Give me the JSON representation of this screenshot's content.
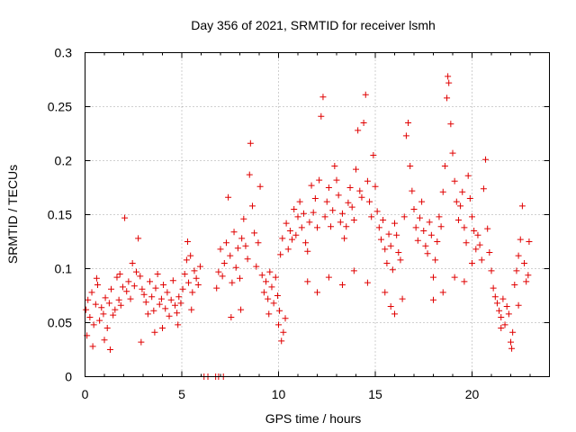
{
  "chart_data": {
    "type": "scatter",
    "title": "Day 356 of 2021, SRMTID for receiver lsmh",
    "xlabel": "GPS time / hours",
    "ylabel": "SRMTID / TECUs",
    "xlim": [
      0,
      24
    ],
    "ylim": [
      0,
      0.3
    ],
    "xticks": [
      0,
      5,
      10,
      15,
      20
    ],
    "xtick_labels": [
      "0",
      "5",
      "10",
      "15",
      "20"
    ],
    "yticks": [
      0,
      0.05,
      0.1,
      0.15,
      0.2,
      0.25,
      0.3
    ],
    "ytick_labels": [
      "0",
      "0.05",
      "0.1",
      "0.15",
      "0.2",
      "0.25",
      "0.3"
    ],
    "grid": true,
    "marker": "+",
    "color": "#e00000",
    "series": [
      {
        "name": "SRMTID",
        "points": [
          [
            0.05,
            0.062
          ],
          [
            0.15,
            0.071
          ],
          [
            0.25,
            0.055
          ],
          [
            0.35,
            0.078
          ],
          [
            0.45,
            0.048
          ],
          [
            0.55,
            0.067
          ],
          [
            0.65,
            0.085
          ],
          [
            0.75,
            0.052
          ],
          [
            0.85,
            0.064
          ],
          [
            0.95,
            0.058
          ],
          [
            1.05,
            0.073
          ],
          [
            1.15,
            0.045
          ],
          [
            1.25,
            0.068
          ],
          [
            1.35,
            0.081
          ],
          [
            1.45,
            0.057
          ],
          [
            1.55,
            0.062
          ],
          [
            1.65,
            0.092
          ],
          [
            1.75,
            0.071
          ],
          [
            1.85,
            0.066
          ],
          [
            1.95,
            0.083
          ],
          [
            0.1,
            0.038
          ],
          [
            0.4,
            0.028
          ],
          [
            0.6,
            0.091
          ],
          [
            1.0,
            0.034
          ],
          [
            1.3,
            0.025
          ],
          [
            1.8,
            0.095
          ],
          [
            2.05,
            0.147
          ],
          [
            2.15,
            0.079
          ],
          [
            2.25,
            0.088
          ],
          [
            2.35,
            0.072
          ],
          [
            2.45,
            0.105
          ],
          [
            2.55,
            0.084
          ],
          [
            2.65,
            0.097
          ],
          [
            2.75,
            0.128
          ],
          [
            2.85,
            0.093
          ],
          [
            2.95,
            0.081
          ],
          [
            3.05,
            0.076
          ],
          [
            3.15,
            0.069
          ],
          [
            3.25,
            0.058
          ],
          [
            3.35,
            0.088
          ],
          [
            3.45,
            0.074
          ],
          [
            3.55,
            0.061
          ],
          [
            3.65,
            0.082
          ],
          [
            3.75,
            0.095
          ],
          [
            3.85,
            0.067
          ],
          [
            3.95,
            0.072
          ],
          [
            4.05,
            0.085
          ],
          [
            4.15,
            0.063
          ],
          [
            4.25,
            0.078
          ],
          [
            4.35,
            0.056
          ],
          [
            4.45,
            0.071
          ],
          [
            4.55,
            0.089
          ],
          [
            4.65,
            0.066
          ],
          [
            4.75,
            0.059
          ],
          [
            4.85,
            0.074
          ],
          [
            4.95,
            0.068
          ],
          [
            5.05,
            0.081
          ],
          [
            5.15,
            0.095
          ],
          [
            5.25,
            0.108
          ],
          [
            5.35,
            0.087
          ],
          [
            5.45,
            0.112
          ],
          [
            5.55,
            0.078
          ],
          [
            5.65,
            0.098
          ],
          [
            5.75,
            0.091
          ],
          [
            5.85,
            0.085
          ],
          [
            5.95,
            0.102
          ],
          [
            2.9,
            0.032
          ],
          [
            3.6,
            0.041
          ],
          [
            4.0,
            0.045
          ],
          [
            4.8,
            0.048
          ],
          [
            5.3,
            0.125
          ],
          [
            5.5,
            0.062
          ],
          [
            6.15,
            0.0
          ],
          [
            6.35,
            0.0
          ],
          [
            6.75,
            0.0
          ],
          [
            6.9,
            0.0
          ],
          [
            7.15,
            0.0
          ],
          [
            6.8,
            0.082
          ],
          [
            6.9,
            0.097
          ],
          [
            7.0,
            0.118
          ],
          [
            7.1,
            0.093
          ],
          [
            7.2,
            0.105
          ],
          [
            7.3,
            0.124
          ],
          [
            7.4,
            0.166
          ],
          [
            7.5,
            0.112
          ],
          [
            7.6,
            0.087
          ],
          [
            7.7,
            0.134
          ],
          [
            7.8,
            0.101
          ],
          [
            7.9,
            0.119
          ],
          [
            8.0,
            0.091
          ],
          [
            8.1,
            0.128
          ],
          [
            8.2,
            0.146
          ],
          [
            8.3,
            0.121
          ],
          [
            8.4,
            0.109
          ],
          [
            8.5,
            0.187
          ],
          [
            8.55,
            0.216
          ],
          [
            8.65,
            0.158
          ],
          [
            8.75,
            0.133
          ],
          [
            8.85,
            0.102
          ],
          [
            8.95,
            0.124
          ],
          [
            9.05,
            0.176
          ],
          [
            9.15,
            0.094
          ],
          [
            9.25,
            0.078
          ],
          [
            9.35,
            0.088
          ],
          [
            9.45,
            0.072
          ],
          [
            9.55,
            0.097
          ],
          [
            9.65,
            0.083
          ],
          [
            9.75,
            0.068
          ],
          [
            9.85,
            0.092
          ],
          [
            9.95,
            0.075
          ],
          [
            10.05,
            0.061
          ],
          [
            10.15,
            0.033
          ],
          [
            10.25,
            0.041
          ],
          [
            10.35,
            0.054
          ],
          [
            7.55,
            0.055
          ],
          [
            8.05,
            0.062
          ],
          [
            9.5,
            0.058
          ],
          [
            10.0,
            0.048
          ],
          [
            10.1,
            0.113
          ],
          [
            10.2,
            0.128
          ],
          [
            10.4,
            0.142
          ],
          [
            10.5,
            0.118
          ],
          [
            10.6,
            0.135
          ],
          [
            10.7,
            0.127
          ],
          [
            10.8,
            0.155
          ],
          [
            10.9,
            0.131
          ],
          [
            11.0,
            0.148
          ],
          [
            11.1,
            0.162
          ],
          [
            11.2,
            0.138
          ],
          [
            11.3,
            0.151
          ],
          [
            11.4,
            0.124
          ],
          [
            11.5,
            0.116
          ],
          [
            11.6,
            0.143
          ],
          [
            11.7,
            0.177
          ],
          [
            11.8,
            0.152
          ],
          [
            11.9,
            0.165
          ],
          [
            12.0,
            0.138
          ],
          [
            12.1,
            0.182
          ],
          [
            12.2,
            0.241
          ],
          [
            12.3,
            0.259
          ],
          [
            12.4,
            0.148
          ],
          [
            12.5,
            0.162
          ],
          [
            12.6,
            0.175
          ],
          [
            12.7,
            0.139
          ],
          [
            12.8,
            0.154
          ],
          [
            12.9,
            0.195
          ],
          [
            13.0,
            0.182
          ],
          [
            13.1,
            0.168
          ],
          [
            13.2,
            0.143
          ],
          [
            13.3,
            0.151
          ],
          [
            13.4,
            0.128
          ],
          [
            13.5,
            0.139
          ],
          [
            13.6,
            0.161
          ],
          [
            13.7,
            0.175
          ],
          [
            13.8,
            0.157
          ],
          [
            13.9,
            0.145
          ],
          [
            14.0,
            0.192
          ],
          [
            14.1,
            0.228
          ],
          [
            14.2,
            0.172
          ],
          [
            14.3,
            0.166
          ],
          [
            14.4,
            0.235
          ],
          [
            14.5,
            0.261
          ],
          [
            14.6,
            0.181
          ],
          [
            14.7,
            0.162
          ],
          [
            14.8,
            0.148
          ],
          [
            14.9,
            0.205
          ],
          [
            15.0,
            0.176
          ],
          [
            15.1,
            0.153
          ],
          [
            15.2,
            0.138
          ],
          [
            15.3,
            0.127
          ],
          [
            15.4,
            0.145
          ],
          [
            15.5,
            0.118
          ],
          [
            15.6,
            0.105
          ],
          [
            15.7,
            0.132
          ],
          [
            15.8,
            0.121
          ],
          [
            15.9,
            0.099
          ],
          [
            16.0,
            0.142
          ],
          [
            16.1,
            0.131
          ],
          [
            16.2,
            0.115
          ],
          [
            16.3,
            0.108
          ],
          [
            11.5,
            0.088
          ],
          [
            12.0,
            0.078
          ],
          [
            12.6,
            0.092
          ],
          [
            13.3,
            0.085
          ],
          [
            13.9,
            0.098
          ],
          [
            14.6,
            0.087
          ],
          [
            15.5,
            0.078
          ],
          [
            15.8,
            0.065
          ],
          [
            16.0,
            0.058
          ],
          [
            16.4,
            0.072
          ],
          [
            16.5,
            0.148
          ],
          [
            16.6,
            0.223
          ],
          [
            16.7,
            0.235
          ],
          [
            16.8,
            0.195
          ],
          [
            16.9,
            0.172
          ],
          [
            17.0,
            0.155
          ],
          [
            17.1,
            0.138
          ],
          [
            17.2,
            0.126
          ],
          [
            17.3,
            0.147
          ],
          [
            17.4,
            0.162
          ],
          [
            17.5,
            0.135
          ],
          [
            17.6,
            0.121
          ],
          [
            17.7,
            0.114
          ],
          [
            17.8,
            0.143
          ],
          [
            17.9,
            0.131
          ],
          [
            18.0,
            0.092
          ],
          [
            18.1,
            0.108
          ],
          [
            18.2,
            0.125
          ],
          [
            18.3,
            0.148
          ],
          [
            18.4,
            0.139
          ],
          [
            18.5,
            0.171
          ],
          [
            18.6,
            0.195
          ],
          [
            18.7,
            0.258
          ],
          [
            18.75,
            0.278
          ],
          [
            18.8,
            0.272
          ],
          [
            18.9,
            0.234
          ],
          [
            19.0,
            0.207
          ],
          [
            19.1,
            0.181
          ],
          [
            19.2,
            0.162
          ],
          [
            19.3,
            0.145
          ],
          [
            19.4,
            0.158
          ],
          [
            19.5,
            0.171
          ],
          [
            19.6,
            0.138
          ],
          [
            19.7,
            0.124
          ],
          [
            19.8,
            0.186
          ],
          [
            19.9,
            0.165
          ],
          [
            20.0,
            0.148
          ],
          [
            20.1,
            0.135
          ],
          [
            20.2,
            0.118
          ],
          [
            20.3,
            0.131
          ],
          [
            20.4,
            0.122
          ],
          [
            20.5,
            0.108
          ],
          [
            20.6,
            0.174
          ],
          [
            20.7,
            0.201
          ],
          [
            20.8,
            0.137
          ],
          [
            20.9,
            0.115
          ],
          [
            21.0,
            0.098
          ],
          [
            21.1,
            0.082
          ],
          [
            21.2,
            0.074
          ],
          [
            21.3,
            0.068
          ],
          [
            18.0,
            0.071
          ],
          [
            18.5,
            0.078
          ],
          [
            19.1,
            0.092
          ],
          [
            19.6,
            0.088
          ],
          [
            20.0,
            0.105
          ],
          [
            21.4,
            0.061
          ],
          [
            21.5,
            0.055
          ],
          [
            21.6,
            0.072
          ],
          [
            21.7,
            0.048
          ],
          [
            21.8,
            0.065
          ],
          [
            21.9,
            0.058
          ],
          [
            22.0,
            0.032
          ],
          [
            22.05,
            0.026
          ],
          [
            22.1,
            0.041
          ],
          [
            22.2,
            0.085
          ],
          [
            22.3,
            0.098
          ],
          [
            22.4,
            0.112
          ],
          [
            22.5,
            0.127
          ],
          [
            22.6,
            0.158
          ],
          [
            22.7,
            0.105
          ],
          [
            22.8,
            0.088
          ],
          [
            22.9,
            0.094
          ],
          [
            22.95,
            0.125
          ],
          [
            21.5,
            0.045
          ],
          [
            22.4,
            0.066
          ]
        ]
      }
    ]
  }
}
